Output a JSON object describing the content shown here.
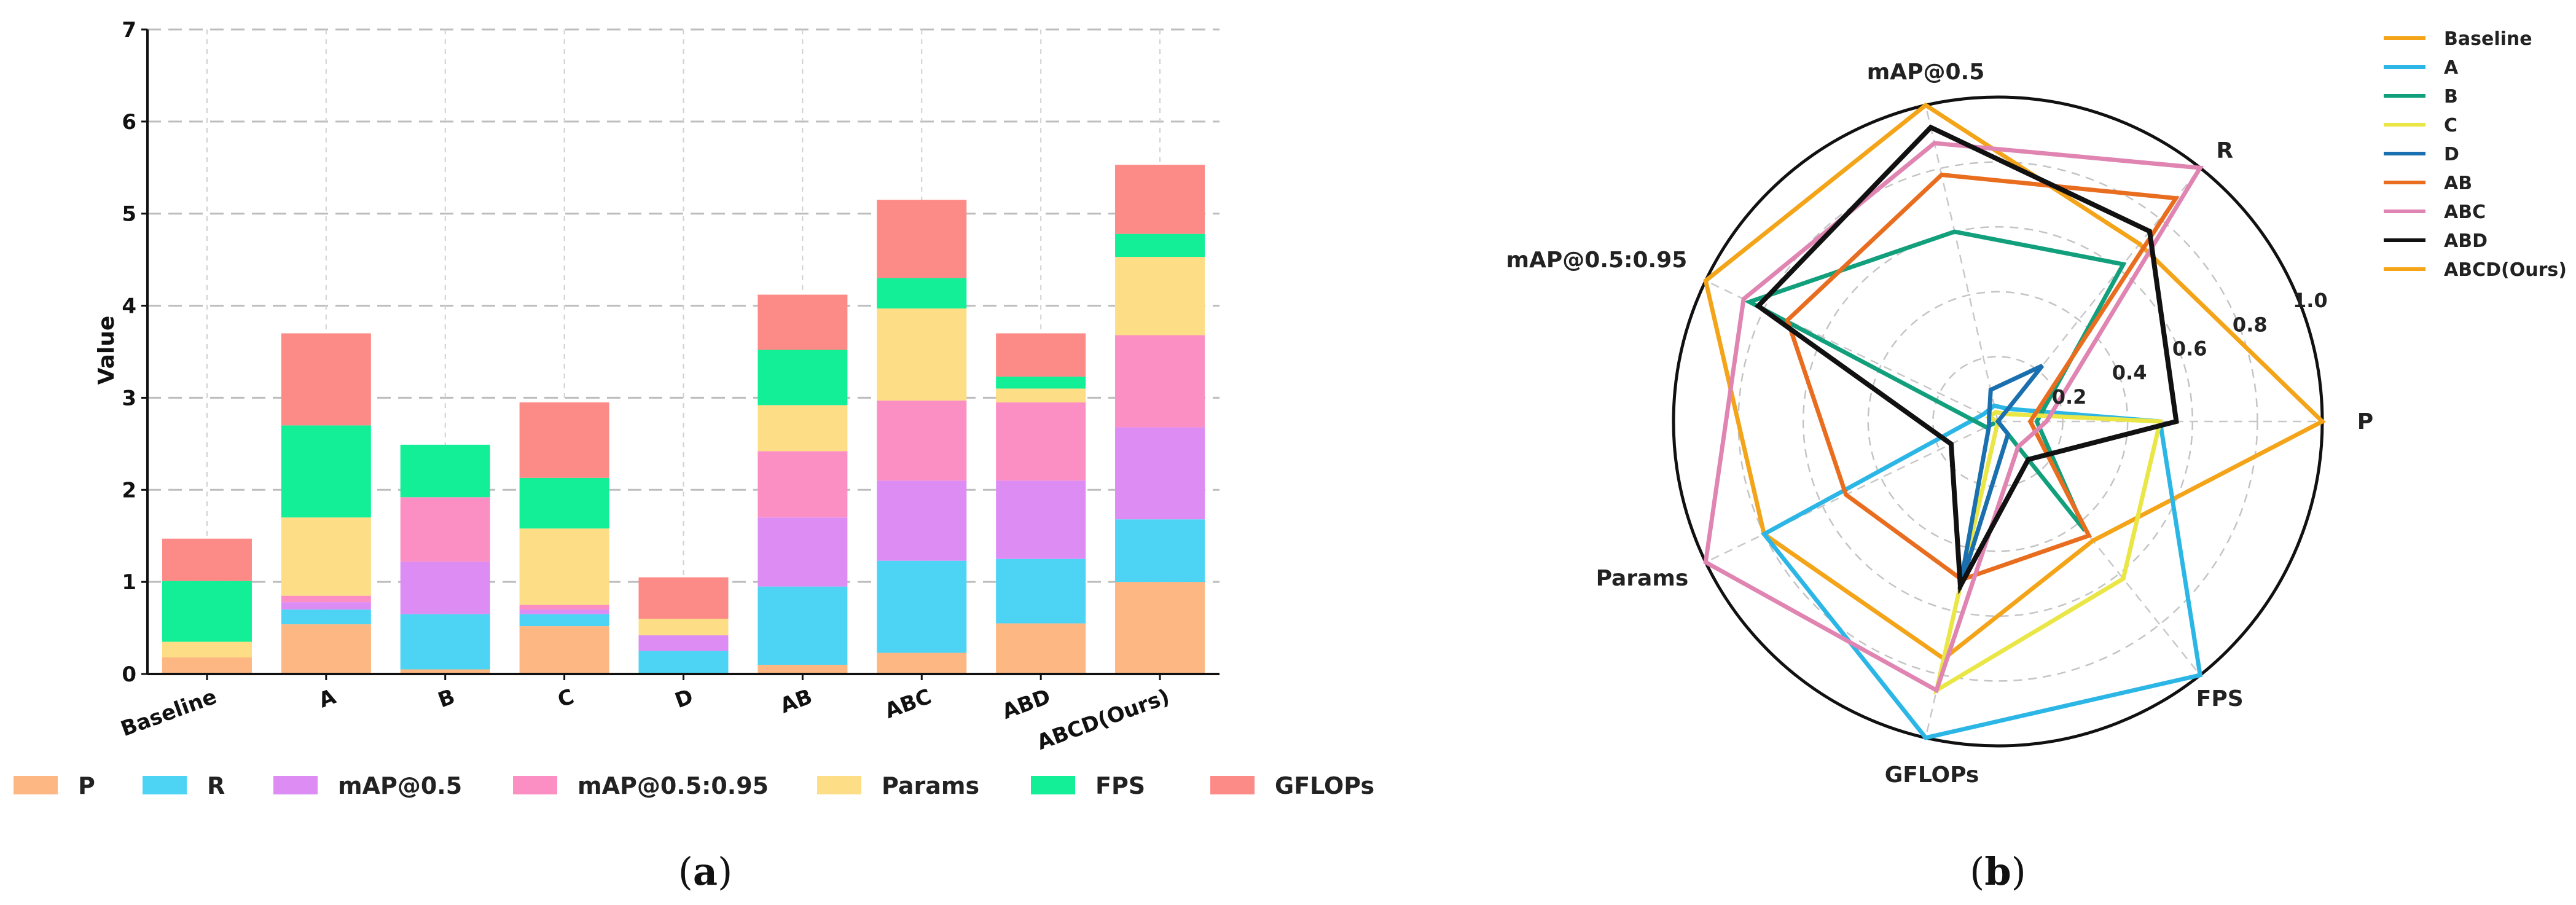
{
  "chart_data": [
    {
      "type": "bar",
      "stacked": true,
      "panel_label": "(a)",
      "panel_letter": "a",
      "ylabel": "Value",
      "xlabel": "",
      "ylim": [
        0,
        7
      ],
      "yticks": [
        "0",
        "1",
        "2",
        "3",
        "4",
        "5",
        "6",
        "7"
      ],
      "grid": true,
      "legend_position": "bottom",
      "categories": [
        "Baseline",
        "A",
        "B",
        "C",
        "D",
        "AB",
        "ABC",
        "ABD",
        "ABCD(Ours)"
      ],
      "series": [
        {
          "name": "P",
          "color": "#fdb782",
          "values": [
            0.18,
            0.54,
            0.05,
            0.52,
            0.0,
            0.1,
            0.23,
            0.55,
            1.0
          ]
        },
        {
          "name": "R",
          "color": "#4dd4f5",
          "values": [
            0.0,
            0.16,
            0.6,
            0.13,
            0.25,
            0.85,
            1.0,
            0.7,
            0.68
          ]
        },
        {
          "name": "mAP@0.5",
          "color": "#dd8cf4",
          "values": [
            0.0,
            0.08,
            0.57,
            0.05,
            0.17,
            0.75,
            0.87,
            0.85,
            1.0
          ]
        },
        {
          "name": "mAP@0.5:0.95",
          "color": "#fb8fc4",
          "values": [
            0.0,
            0.07,
            0.7,
            0.05,
            0.0,
            0.72,
            0.87,
            0.85,
            1.0
          ]
        },
        {
          "name": "Params",
          "color": "#fddd85",
          "values": [
            0.17,
            0.85,
            0.0,
            0.83,
            0.18,
            0.5,
            1.0,
            0.15,
            0.85
          ]
        },
        {
          "name": "FPS",
          "color": "#12ef97",
          "values": [
            0.66,
            1.0,
            0.57,
            0.55,
            0.0,
            0.6,
            0.33,
            0.13,
            0.25
          ]
        },
        {
          "name": "GFLOPs",
          "color": "#fc8a86",
          "values": [
            0.46,
            1.0,
            0.0,
            0.82,
            0.45,
            0.6,
            0.85,
            0.47,
            0.75
          ]
        }
      ]
    },
    {
      "type": "radar",
      "panel_label": "(b)",
      "panel_letter": "b",
      "axes": [
        "P",
        "R",
        "mAP@0.5",
        "mAP@0.5:0.95",
        "Params",
        "GFLOPs",
        "FPS"
      ],
      "rlim": [
        0,
        1.0
      ],
      "rticks": [
        0.2,
        0.4,
        0.6,
        0.8,
        1.0
      ],
      "rtick_labels": [
        "0.2",
        "0.4",
        "0.6",
        "0.8",
        "1.0"
      ],
      "legend_position": "top-right",
      "series": [
        {
          "name": "Baseline",
          "color": "#f3a418",
          "values": [
            1.0,
            0.7,
            1.0,
            1.0,
            0.8,
            0.75,
            0.47
          ]
        },
        {
          "name": "A",
          "color": "#2cb6e6",
          "values": [
            0.5,
            0.05,
            0.05,
            0.05,
            0.8,
            1.0,
            1.0
          ]
        },
        {
          "name": "B",
          "color": "#129f7c",
          "values": [
            0.12,
            0.62,
            0.6,
            0.85,
            0.04,
            0.0,
            0.43
          ]
        },
        {
          "name": "C",
          "color": "#e9e646",
          "values": [
            0.5,
            0.03,
            0.03,
            0.03,
            0.0,
            0.85,
            0.62
          ]
        },
        {
          "name": "D",
          "color": "#1a6fae",
          "values": [
            0.0,
            0.22,
            0.1,
            0.03,
            0.03,
            0.53,
            0.05
          ]
        },
        {
          "name": "AB",
          "color": "#e96d1f",
          "values": [
            0.1,
            0.88,
            0.78,
            0.72,
            0.52,
            0.5,
            0.45
          ]
        },
        {
          "name": "ABC",
          "color": "#e084b2",
          "values": [
            0.15,
            1.0,
            0.88,
            0.87,
            1.0,
            0.85,
            0.1
          ]
        },
        {
          "name": "ABD",
          "color": "#111111",
          "values": [
            0.55,
            0.75,
            0.93,
            0.82,
            0.16,
            0.52,
            0.15
          ]
        },
        {
          "name": "ABCD(Ours)",
          "color": "#f3a418",
          "values": [
            0.0,
            0.0,
            0.0,
            0.0,
            0.0,
            0.0,
            0.0
          ]
        }
      ]
    }
  ]
}
